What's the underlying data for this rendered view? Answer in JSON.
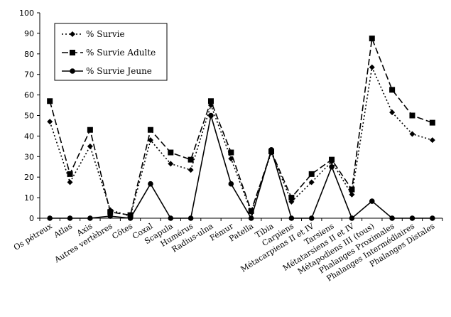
{
  "chart_data": {
    "type": "line",
    "title": "",
    "xlabel": "",
    "ylabel": "",
    "ylim": [
      0,
      100
    ],
    "yticks": [
      0,
      10,
      20,
      30,
      40,
      50,
      60,
      70,
      80,
      90,
      100
    ],
    "grid": false,
    "legend_position": "top-left",
    "categories": [
      "Os pétreux",
      "Atlas",
      "Axis",
      "Autres vertèbres",
      "Côtes",
      "Coxal",
      "Scapula",
      "Humérus",
      "Radius-ulna",
      "Fémur",
      "Patella",
      "Tibia",
      "Carpiens",
      "Métacarpiens II et IV",
      "Tarsiens",
      "Métatarsiens II et IV",
      "Métapodiens III (tous)",
      "Phalanges Proximales",
      "Phalanges Intermédiaires",
      "Phalanges Distales"
    ],
    "series": [
      {
        "name": "% Survie",
        "marker": "diamond",
        "dash": "2,3",
        "values": [
          47,
          17.5,
          35,
          4,
          1,
          38,
          26.5,
          23.5,
          55,
          29,
          3,
          32,
          8,
          17.5,
          27.5,
          11.5,
          73.5,
          51.5,
          41,
          38
        ]
      },
      {
        "name": "% Survie Adulte",
        "marker": "square",
        "dash": "9,4",
        "values": [
          57,
          21.5,
          43,
          3,
          1.5,
          43,
          32,
          28.5,
          57,
          32,
          3.5,
          32.5,
          10,
          21.5,
          28.5,
          14,
          87.5,
          62.5,
          50,
          46.5
        ]
      },
      {
        "name": "% Survie Jeune",
        "marker": "circle",
        "dash": "",
        "values": [
          0,
          0,
          0,
          1,
          0,
          16.7,
          0,
          0,
          50,
          16.7,
          0,
          33.3,
          0,
          0,
          25,
          0,
          8.3,
          0,
          0,
          0
        ]
      }
    ]
  }
}
